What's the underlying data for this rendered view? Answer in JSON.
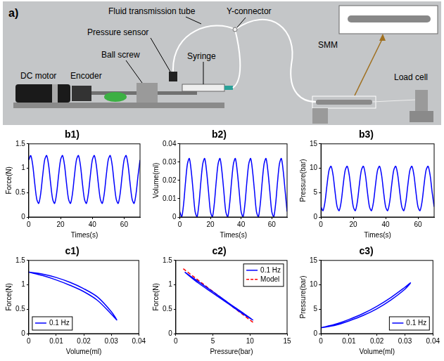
{
  "photo": {
    "label": "a)",
    "dc_motor": "DC motor",
    "encoder": "Encoder",
    "ball_screw": "Ball screw",
    "pressure_sensor": "Pressure sensor",
    "syringe": "Syringe",
    "fluid_transmission_tube": "Fluid transmission tube",
    "y_connector": "Y-connector",
    "smm": "SMM",
    "load_cell": "Load cell"
  },
  "chart_data": [
    {
      "type": "line",
      "title": "b1)",
      "x_label": "Times(s)",
      "y_label": "Force(N)",
      "x": [
        0,
        1.25,
        2.5,
        3.75,
        5,
        6.25,
        7.5,
        8.75,
        10,
        11.25,
        12.5,
        13.75,
        15,
        16.25,
        17.5,
        18.75,
        20,
        21.25,
        22.5,
        23.75,
        25,
        26.25,
        27.5,
        28.75,
        30,
        31.25,
        32.5,
        33.75,
        35,
        36.25,
        37.5,
        38.75,
        40,
        41.25,
        42.5,
        43.75,
        45,
        46.25,
        47.5,
        48.75,
        50,
        51.25,
        52.5,
        53.75,
        55,
        56.25,
        57.5,
        58.75,
        60,
        61.25,
        62.5,
        63.75,
        65,
        66.25,
        67.5,
        68.75,
        70
      ],
      "values": [
        1.17,
        1.26,
        1.06,
        0.69,
        0.37,
        0.28,
        0.48,
        0.85,
        1.17,
        1.26,
        1.06,
        0.69,
        0.37,
        0.28,
        0.48,
        0.85,
        1.17,
        1.26,
        1.06,
        0.69,
        0.37,
        0.28,
        0.48,
        0.85,
        1.17,
        1.26,
        1.06,
        0.69,
        0.37,
        0.28,
        0.48,
        0.85,
        1.17,
        1.26,
        1.06,
        0.69,
        0.37,
        0.28,
        0.48,
        0.85,
        1.17,
        1.26,
        1.06,
        0.69,
        0.37,
        0.28,
        0.48,
        0.85,
        1.17,
        1.26,
        1.06,
        0.69,
        0.37,
        0.28,
        0.48,
        0.85,
        1.17
      ],
      "color": "#0000ff",
      "xlim": [
        0,
        70
      ],
      "xticks": [
        0,
        20,
        40,
        60
      ],
      "ylim": [
        0,
        1.5
      ],
      "yticks": [
        0,
        0.5,
        1,
        1.5
      ],
      "grid": false
    },
    {
      "type": "line",
      "title": "b2)",
      "x_label": "Times(s)",
      "y_label": "Volume(ml)",
      "x": [
        0,
        1.25,
        2.5,
        3.75,
        5,
        6.25,
        7.5,
        8.75,
        10,
        11.25,
        12.5,
        13.75,
        15,
        16.25,
        17.5,
        18.75,
        20,
        21.25,
        22.5,
        23.75,
        25,
        26.25,
        27.5,
        28.75,
        30,
        31.25,
        32.5,
        33.75,
        35,
        36.25,
        37.5,
        38.75,
        40,
        41.25,
        42.5,
        43.75,
        45,
        46.25,
        47.5,
        48.75,
        50,
        51.25,
        52.5,
        53.75,
        55,
        56.25,
        57.5,
        58.75,
        60,
        61.25,
        62.5,
        63.75,
        65,
        66.25,
        67.5,
        68.75,
        70
      ],
      "values": [
        0.003,
        0,
        0.007,
        0.019,
        0.029,
        0.032,
        0.025,
        0.014,
        0.003,
        0,
        0.007,
        0.019,
        0.029,
        0.032,
        0.025,
        0.014,
        0.003,
        0,
        0.007,
        0.019,
        0.029,
        0.032,
        0.025,
        0.014,
        0.003,
        0,
        0.007,
        0.019,
        0.029,
        0.032,
        0.025,
        0.014,
        0.003,
        0,
        0.007,
        0.019,
        0.029,
        0.032,
        0.025,
        0.014,
        0.003,
        0,
        0.007,
        0.019,
        0.029,
        0.032,
        0.025,
        0.014,
        0.003,
        0,
        0.007,
        0.019,
        0.029,
        0.032,
        0.025,
        0.014,
        0.003
      ],
      "color": "#0000ff",
      "xlim": [
        0,
        70
      ],
      "xticks": [
        0,
        20,
        40,
        60
      ],
      "ylim": [
        0,
        0.04
      ],
      "yticks": [
        0,
        0.01,
        0.02,
        0.03,
        0.04
      ],
      "grid": false
    },
    {
      "type": "line",
      "title": "b3)",
      "x_label": "Times(s)",
      "y_label": "Pressure(bar)",
      "x": [
        0,
        1.25,
        2.5,
        3.75,
        5,
        6.25,
        7.5,
        8.75,
        10,
        11.25,
        12.5,
        13.75,
        15,
        16.25,
        17.5,
        18.75,
        20,
        21.25,
        22.5,
        23.75,
        25,
        26.25,
        27.5,
        28.75,
        30,
        31.25,
        32.5,
        33.75,
        35,
        36.25,
        37.5,
        38.75,
        40,
        41.25,
        42.5,
        43.75,
        45,
        46.25,
        47.5,
        48.75,
        50,
        51.25,
        52.5,
        53.75,
        55,
        56.25,
        57.5,
        58.75,
        60,
        61.25,
        62.5,
        63.75,
        65,
        66.25,
        67.5,
        68.75,
        70
      ],
      "values": [
        2.1,
        1.3,
        3.1,
        6.6,
        9.6,
        10.4,
        8.6,
        5.1,
        2.1,
        1.3,
        3.1,
        6.6,
        9.6,
        10.4,
        8.6,
        5.1,
        2.1,
        1.3,
        3.1,
        6.6,
        9.6,
        10.4,
        8.6,
        5.1,
        2.1,
        1.3,
        3.1,
        6.6,
        9.6,
        10.4,
        8.6,
        5.1,
        2.1,
        1.3,
        3.1,
        6.6,
        9.6,
        10.4,
        8.6,
        5.1,
        2.1,
        1.3,
        3.1,
        6.6,
        9.6,
        10.4,
        8.6,
        5.1,
        2.1,
        1.3,
        3.1,
        6.6,
        9.6,
        10.4,
        8.6,
        5.1,
        2.1
      ],
      "color": "#0000ff",
      "xlim": [
        0,
        70
      ],
      "xticks": [
        0,
        20,
        40,
        60
      ],
      "ylim": [
        0,
        15
      ],
      "yticks": [
        0,
        5,
        10,
        15
      ],
      "grid": false
    },
    {
      "type": "line",
      "title": "c1)",
      "x_label": "Volume(ml)",
      "y_label": "Force(N)",
      "series": [
        {
          "name": "0.1 Hz",
          "color": "#0000ff",
          "x": [
            0,
            0.005,
            0.01,
            0.015,
            0.02,
            0.025,
            0.03,
            0.032,
            0.03,
            0.025,
            0.02,
            0.015,
            0.01,
            0.005,
            0
          ],
          "values": [
            1.26,
            1.22,
            1.15,
            1.05,
            0.92,
            0.75,
            0.45,
            0.28,
            0.4,
            0.68,
            0.86,
            0.99,
            1.1,
            1.19,
            1.26
          ]
        }
      ],
      "xlim": [
        0,
        0.04
      ],
      "xticks": [
        0,
        0.01,
        0.02,
        0.03,
        0.04
      ],
      "ylim": [
        0,
        1.5
      ],
      "yticks": [
        0,
        0.5,
        1,
        1.5
      ],
      "grid": false,
      "legend": "lower left"
    },
    {
      "type": "line",
      "title": "c2)",
      "x_label": "Pressure(bar)",
      "y_label": "Force(N)",
      "series": [
        {
          "name": "0.1 Hz",
          "color": "#0000ff",
          "x": [
            1.2,
            3,
            5,
            7,
            9,
            10.4,
            9,
            7,
            5,
            3,
            1.2
          ],
          "values": [
            1.26,
            1.07,
            0.86,
            0.64,
            0.43,
            0.28,
            0.41,
            0.62,
            0.83,
            1.04,
            1.26
          ]
        },
        {
          "name": "Model",
          "color": "#ff0000",
          "line_style": "dashed",
          "x": [
            1,
            10.5
          ],
          "values": [
            1.33,
            0.22
          ]
        }
      ],
      "xlim": [
        0,
        15
      ],
      "xticks": [
        0,
        5,
        10,
        15
      ],
      "ylim": [
        0,
        1.5
      ],
      "yticks": [
        0,
        0.5,
        1,
        1.5
      ],
      "grid": false,
      "legend": "upper right"
    },
    {
      "type": "line",
      "title": "c3)",
      "x_label": "Volume(ml)",
      "y_label": "Pressure(bar)",
      "series": [
        {
          "name": "0.1 Hz",
          "color": "#0000ff",
          "x": [
            0,
            0.005,
            0.01,
            0.015,
            0.02,
            0.025,
            0.03,
            0.032,
            0.03,
            0.025,
            0.02,
            0.015,
            0.01,
            0.005,
            0
          ],
          "values": [
            1.2,
            1.9,
            2.9,
            4.1,
            5.6,
            7.4,
            9.5,
            10.4,
            9.1,
            6.9,
            5.1,
            3.7,
            2.6,
            1.7,
            1.2
          ]
        }
      ],
      "xlim": [
        0,
        0.04
      ],
      "xticks": [
        0,
        0.01,
        0.02,
        0.03,
        0.04
      ],
      "ylim": [
        0,
        15
      ],
      "yticks": [
        0,
        5,
        10,
        15
      ],
      "grid": false,
      "legend": "lower right"
    }
  ]
}
